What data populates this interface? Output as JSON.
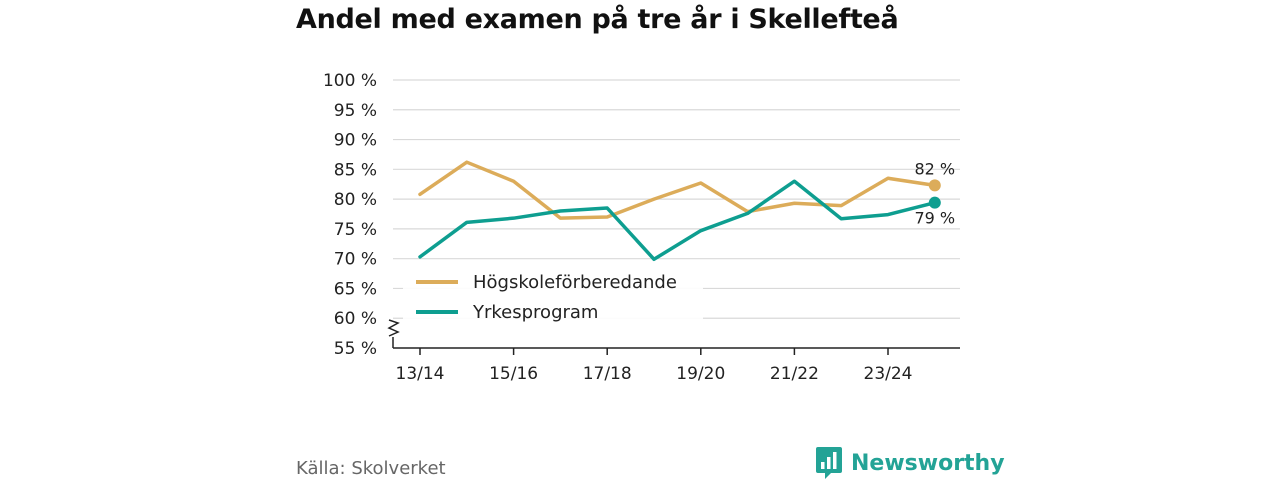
{
  "title": "Andel med examen på tre år i Skellefteå",
  "source": "Källa: Skolverket",
  "brand": {
    "name": "Newsworthy",
    "icon": "newsworthy-logo-icon",
    "color": "#23a396"
  },
  "chart_data": {
    "type": "line",
    "x": [
      "13/14",
      "14/15",
      "15/16",
      "16/17",
      "17/18",
      "18/19",
      "19/20",
      "20/21",
      "21/22",
      "22/23",
      "23/24",
      "24/25"
    ],
    "x_tick_labels": [
      "13/14",
      "15/16",
      "17/18",
      "19/20",
      "21/22",
      "23/24"
    ],
    "ylim": [
      55,
      100
    ],
    "y_ticks": [
      55,
      60,
      65,
      70,
      75,
      80,
      85,
      90,
      95,
      100
    ],
    "y_tick_labels": [
      "55 %",
      "60 %",
      "65 %",
      "70 %",
      "75 %",
      "80 %",
      "85 %",
      "90 %",
      "95 %",
      "100 %"
    ],
    "axis_break": true,
    "grid": true,
    "legend_position": "bottom-left",
    "series": [
      {
        "name": "Högskoleförberedande",
        "color": "#dcac5a",
        "values": [
          80.8,
          86.2,
          83.0,
          76.8,
          77.0,
          80.0,
          82.7,
          77.9,
          79.3,
          78.9,
          83.5,
          82.3
        ],
        "end_label": "82 %"
      },
      {
        "name": "Yrkesprogram",
        "color": "#0e9e90",
        "values": [
          70.3,
          76.1,
          76.8,
          78.0,
          78.5,
          69.9,
          74.7,
          77.6,
          83.0,
          76.7,
          77.4,
          79.4
        ],
        "end_label": "79 %"
      }
    ]
  }
}
